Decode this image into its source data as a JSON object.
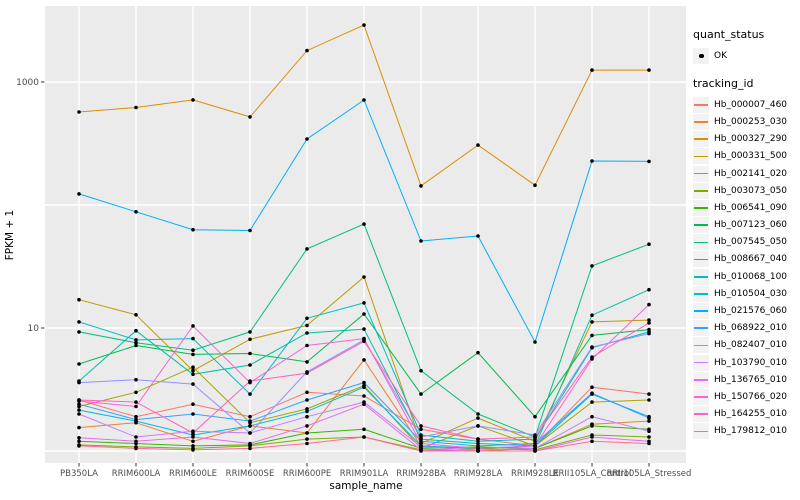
{
  "figure": {
    "background": "#ffffff",
    "panel_fill": "#ebebeb",
    "grid_color": "#ffffff",
    "point_color": "#000000",
    "tick_color": "#333333",
    "tick_label_color": "#4d4d4d"
  },
  "legend": {
    "quant_status_title": "quant_status",
    "quant_status_ok": "OK",
    "tracking_title": "tracking_id"
  },
  "chart_data": {
    "type": "line",
    "title": "",
    "xlabel": "sample_name",
    "ylabel": "FPKM + 1",
    "y_scale": "log10",
    "y_tick_labels": [
      "1000",
      "10"
    ],
    "y_tick_values": [
      1000,
      10
    ],
    "y_gridline_values": [
      1,
      10,
      100,
      1000
    ],
    "ylim": [
      0.8,
      4100
    ],
    "grid": "on",
    "legend_position": "right",
    "categories": [
      "PB350LA",
      "RRIM600LA",
      "RRIM600LE",
      "RRIM600SE",
      "RRIM600PE",
      "RRIM901LA",
      "RRIM928BA",
      "RRIM928LA",
      "RRIM928LE",
      "RRII105LA_Control",
      "RRII105LA_Stressed"
    ],
    "series": [
      {
        "name": "Hb_000007_460",
        "color": "#F8766D",
        "values": [
          2.6,
          1.9,
          2.4,
          1.9,
          3.0,
          2.8,
          1.5,
          1.25,
          1.1,
          3.3,
          2.9
        ]
      },
      {
        "name": "Hb_000253_030",
        "color": "#EA8331",
        "values": [
          1.55,
          1.7,
          1.2,
          1.6,
          1.4,
          5.5,
          1.1,
          1.0,
          1.05,
          1.65,
          1.75
        ]
      },
      {
        "name": "Hb_000327_290",
        "color": "#D89000",
        "values": [
          570,
          620,
          715,
          520,
          1800,
          2900,
          143,
          307,
          145,
          1250,
          1250
        ]
      },
      {
        "name": "Hb_000331_500",
        "color": "#C09B00",
        "values": [
          17,
          12.8,
          4.5,
          8.1,
          10.5,
          26,
          1.15,
          1.85,
          1.2,
          11.2,
          11.6
        ]
      },
      {
        "name": "Hb_002141_020",
        "color": "#A3A500",
        "values": [
          2.3,
          3.0,
          4.8,
          1.7,
          2.2,
          3.4,
          1.05,
          1.6,
          1.1,
          2.5,
          2.6
        ]
      },
      {
        "name": "Hb_003073_050",
        "color": "#7CAE00",
        "values": [
          1.12,
          1.08,
          1.05,
          1.1,
          1.25,
          1.3,
          1.02,
          1.05,
          1.02,
          1.35,
          1.3
        ]
      },
      {
        "name": "Hb_006541_090",
        "color": "#39B600",
        "values": [
          1.2,
          1.15,
          1.1,
          1.12,
          1.4,
          1.5,
          1.05,
          1.08,
          1.05,
          1.6,
          1.5
        ]
      },
      {
        "name": "Hb_007123_060",
        "color": "#00BB4E",
        "values": [
          5.1,
          7.2,
          6.1,
          6.2,
          5.3,
          13,
          2.9,
          6.3,
          1.9,
          8.7,
          9.7
        ]
      },
      {
        "name": "Hb_007545_050",
        "color": "#00BF7D",
        "values": [
          9.3,
          7.6,
          6.6,
          9.3,
          44,
          70,
          4.5,
          2.0,
          1.3,
          32,
          48
        ]
      },
      {
        "name": "Hb_008667_040",
        "color": "#00C1A3",
        "values": [
          3.7,
          9.5,
          4.2,
          5.0,
          9.1,
          9.8,
          1.25,
          1.15,
          1.1,
          12.7,
          20.5
        ]
      },
      {
        "name": "Hb_010068_100",
        "color": "#00BFC4",
        "values": [
          11.2,
          8.0,
          8.2,
          2.9,
          12,
          16,
          1.35,
          1.2,
          1.25,
          6.9,
          9.3
        ]
      },
      {
        "name": "Hb_010504_030",
        "color": "#00BAE0",
        "values": [
          2.15,
          1.75,
          1.35,
          1.6,
          2.1,
          3.3,
          1.1,
          1.05,
          1.1,
          2.9,
          1.9
        ]
      },
      {
        "name": "Hb_021576_060",
        "color": "#00B0F6",
        "values": [
          123,
          88,
          63,
          62,
          344,
          714,
          51,
          56,
          7.7,
          228,
          226
        ]
      },
      {
        "name": "Hb_068922_010",
        "color": "#35A2FF",
        "values": [
          2.4,
          1.8,
          2.0,
          1.75,
          2.6,
          3.6,
          1.2,
          1.1,
          1.15,
          2.95,
          1.85
        ]
      },
      {
        "name": "Hb_082407_010",
        "color": "#9590FF",
        "values": [
          3.6,
          3.8,
          3.5,
          1.4,
          4.4,
          8.0,
          1.3,
          1.6,
          1.35,
          7.0,
          9.0
        ]
      },
      {
        "name": "Hb_103790_010",
        "color": "#C77CFF",
        "values": [
          2.0,
          1.3,
          1.45,
          1.4,
          1.9,
          2.5,
          1.08,
          1.02,
          1.05,
          1.9,
          1.45
        ]
      },
      {
        "name": "Hb_136765_010",
        "color": "#E76BF3",
        "values": [
          1.28,
          1.2,
          1.3,
          1.15,
          1.6,
          2.4,
          1.02,
          1.0,
          1.0,
          1.3,
          1.2
        ]
      },
      {
        "name": "Hb_150766_020",
        "color": "#FA62DB",
        "values": [
          2.55,
          2.3,
          10.4,
          3.6,
          7.2,
          8.2,
          1.15,
          1.05,
          1.1,
          5.6,
          15.5
        ]
      },
      {
        "name": "Hb_164255_010",
        "color": "#FF62BC",
        "values": [
          2.6,
          2.5,
          1.4,
          3.7,
          4.3,
          7.8,
          1.6,
          1.25,
          1.3,
          5.8,
          11.0
        ]
      },
      {
        "name": "Hb_179812_010",
        "color": "#FF6A98",
        "values": [
          1.1,
          1.05,
          1.02,
          1.05,
          1.15,
          1.3,
          1.0,
          1.0,
          1.0,
          1.2,
          1.15
        ]
      }
    ]
  }
}
